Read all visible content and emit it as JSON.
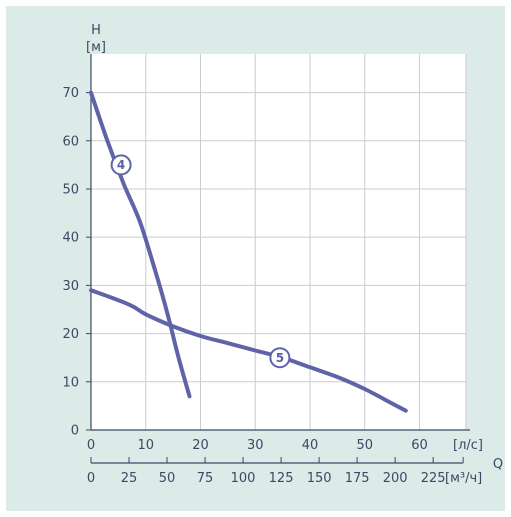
{
  "chart_data": {
    "type": "line",
    "y_axis": {
      "name": "H",
      "unit": "[м]",
      "ticks": [
        "0",
        "10",
        "20",
        "30",
        "40",
        "50",
        "60",
        "70"
      ],
      "ylim": [
        0,
        78
      ]
    },
    "x_axis_primary": {
      "unit": "[л/с]",
      "ticks": [
        "0",
        "10",
        "20",
        "30",
        "40",
        "50",
        "60"
      ],
      "xlim": [
        0,
        68.5
      ]
    },
    "x_axis_secondary": {
      "unit": "[м³/ч]",
      "ticks": [
        "0",
        "25",
        "50",
        "75",
        "100",
        "125",
        "150",
        "175",
        "200",
        "225"
      ],
      "scale_m3h_per_ls": 3.6
    },
    "x_axis_name": "Q",
    "grid": true,
    "series": [
      {
        "name": "4",
        "color": "#5f64a8",
        "points": [
          [
            0,
            70
          ],
          [
            3,
            60
          ],
          [
            6,
            51
          ],
          [
            9,
            43
          ],
          [
            12,
            32
          ],
          [
            14,
            24
          ],
          [
            16,
            15
          ],
          [
            18,
            7
          ]
        ],
        "label_at": [
          5.5,
          55
        ]
      },
      {
        "name": "5",
        "color": "#5f64a8",
        "points": [
          [
            0,
            29
          ],
          [
            7,
            26
          ],
          [
            10,
            24
          ],
          [
            15,
            21.5
          ],
          [
            20,
            19.5
          ],
          [
            25,
            18
          ],
          [
            30,
            16.5
          ],
          [
            35,
            15
          ],
          [
            40,
            13
          ],
          [
            45,
            11
          ],
          [
            50,
            8.5
          ],
          [
            55,
            5.5
          ],
          [
            57.5,
            4
          ]
        ],
        "label_at": [
          34.5,
          15
        ]
      }
    ]
  }
}
